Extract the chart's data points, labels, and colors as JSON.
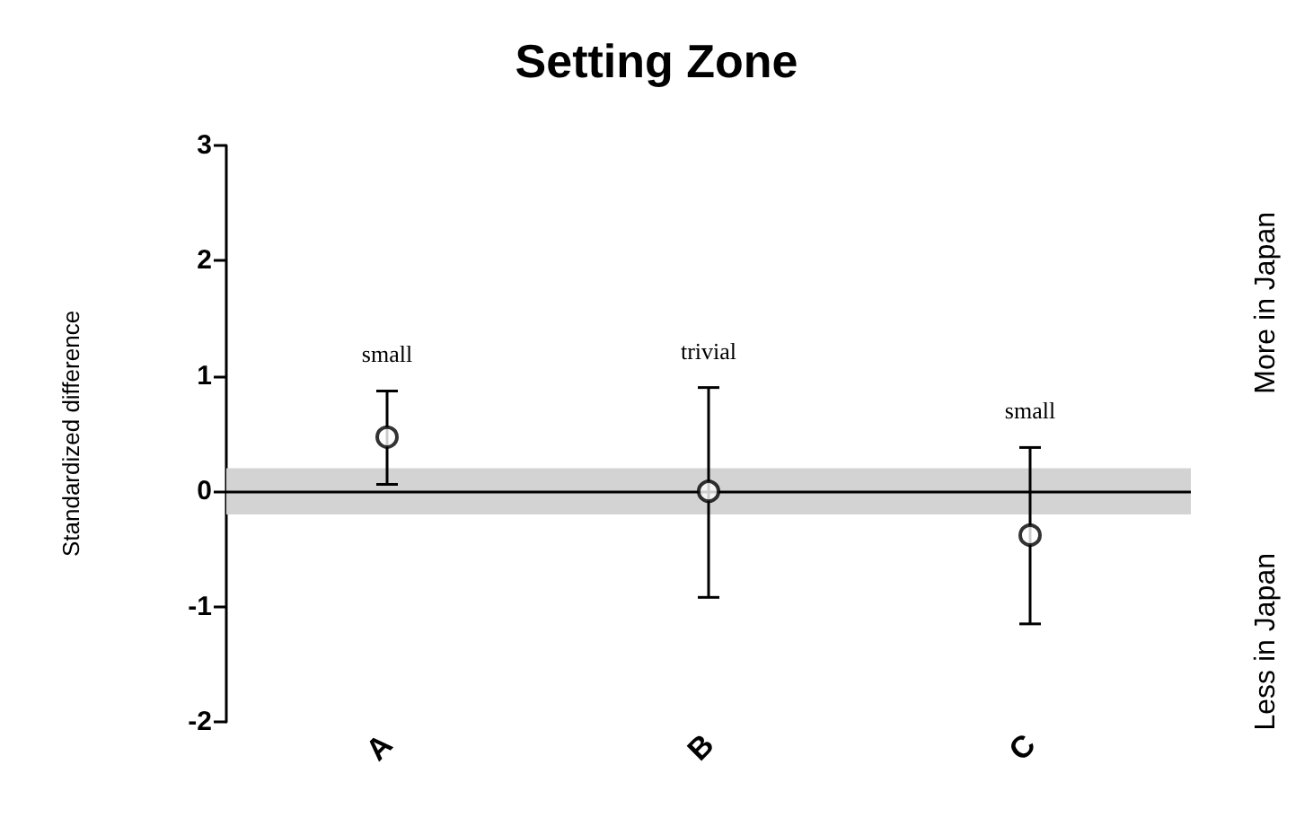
{
  "chart_data": {
    "type": "scatter",
    "title": "Setting Zone",
    "ylabel": "Standardized difference",
    "categories": [
      "A",
      "B",
      "C"
    ],
    "values": [
      0.47,
      0,
      -0.38
    ],
    "errors": [
      [
        0.06,
        0.87
      ],
      [
        -0.92,
        0.9
      ],
      [
        -1.15,
        0.38
      ]
    ],
    "color": "#000000",
    "marker": "circle",
    "ylim": [
      -2,
      3
    ],
    "yticks": [
      -2,
      -1,
      0,
      1,
      2,
      3
    ],
    "grid": false,
    "ref_lines": [
      {
        "axis": "y",
        "value": 0,
        "color": "#000000"
      }
    ],
    "bands": [
      {
        "axis": "y",
        "from": -0.2,
        "to": 0.2,
        "color": "#d3d3d3"
      }
    ],
    "annotations": [
      "small",
      "trivial",
      "small",
      "More in Japan",
      "Less in Japan"
    ]
  }
}
